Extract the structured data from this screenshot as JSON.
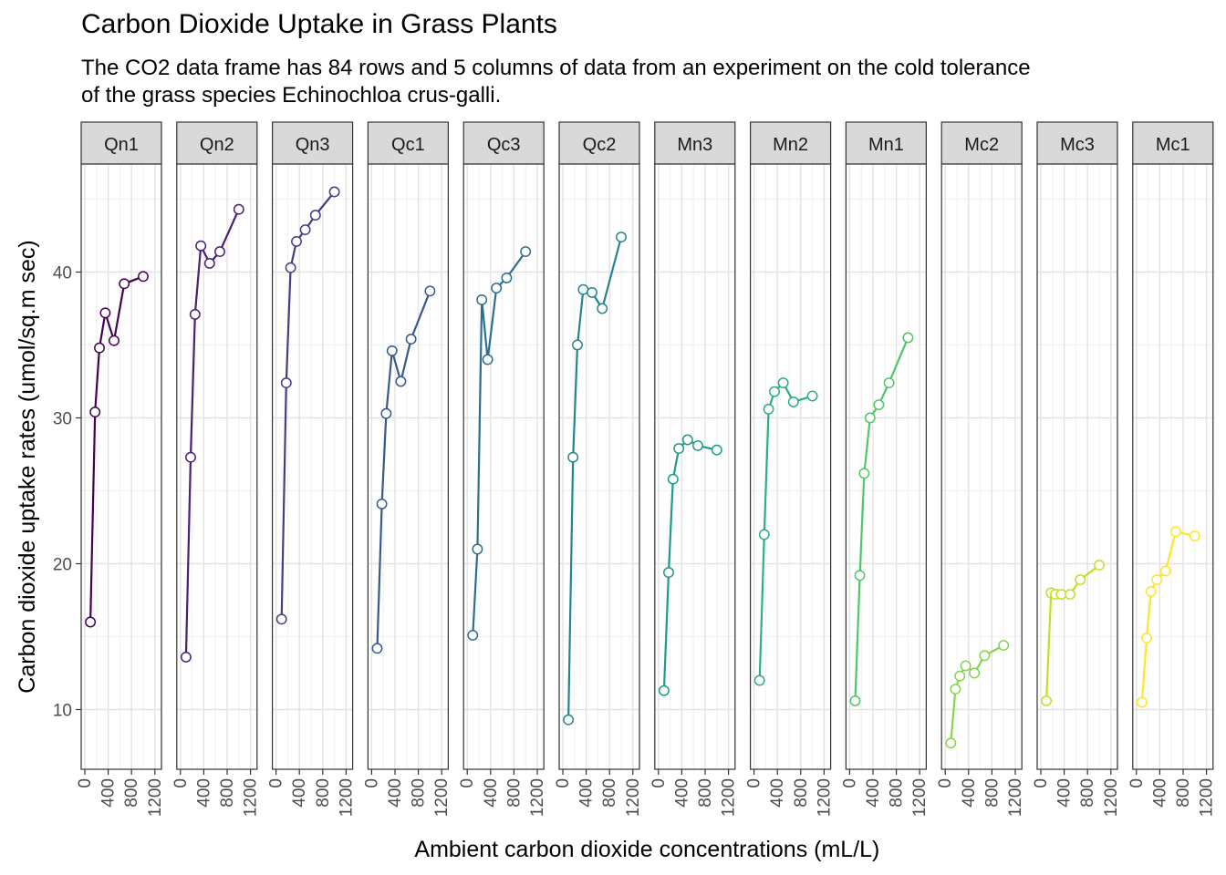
{
  "title": "Carbon Dioxide Uptake in Grass Plants",
  "subtitle_lines": [
    "The CO2 data frame has 84 rows and 5 columns of data from an experiment on the cold tolerance",
    "of the grass species Echinochloa crus-galli."
  ],
  "chart_data": {
    "type": "line",
    "facet_by": "Plant",
    "xlabel": "Ambient carbon dioxide concentrations (mL/L)",
    "ylabel": "Carbon dioxide uptake rates (umol/sq.m sec)",
    "xlim": [
      0,
      1250
    ],
    "ylim": [
      6,
      48
    ],
    "x_ticks": [
      0,
      400,
      800,
      1200
    ],
    "y_ticks": [
      10,
      20,
      30,
      40
    ],
    "grid": true,
    "legend": "none",
    "x": [
      95,
      175,
      250,
      350,
      500,
      675,
      1000
    ],
    "series": [
      {
        "name": "Qn1",
        "color": "#440154",
        "values": [
          16.0,
          30.4,
          34.8,
          37.2,
          35.3,
          39.2,
          39.7
        ]
      },
      {
        "name": "Qn2",
        "color": "#482173",
        "values": [
          13.6,
          27.3,
          37.1,
          41.8,
          40.6,
          41.4,
          44.3
        ]
      },
      {
        "name": "Qn3",
        "color": "#433E85",
        "values": [
          16.2,
          32.4,
          40.3,
          42.1,
          42.9,
          43.9,
          45.5
        ]
      },
      {
        "name": "Qc1",
        "color": "#38598C",
        "values": [
          14.2,
          24.1,
          30.3,
          34.6,
          32.5,
          35.4,
          38.7
        ]
      },
      {
        "name": "Qc3",
        "color": "#2D708E",
        "values": [
          15.1,
          21.0,
          38.1,
          34.0,
          38.9,
          39.6,
          41.4
        ]
      },
      {
        "name": "Qc2",
        "color": "#25858E",
        "values": [
          9.3,
          27.3,
          35.0,
          38.8,
          38.6,
          37.5,
          42.4
        ]
      },
      {
        "name": "Mn3",
        "color": "#1E9B8A",
        "values": [
          11.3,
          19.4,
          25.8,
          27.9,
          28.5,
          28.1,
          27.8
        ]
      },
      {
        "name": "Mn2",
        "color": "#2BB07F",
        "values": [
          12.0,
          22.0,
          30.6,
          31.8,
          32.4,
          31.1,
          31.5
        ]
      },
      {
        "name": "Mn1",
        "color": "#51C56A",
        "values": [
          10.6,
          19.2,
          26.2,
          30.0,
          30.9,
          32.4,
          35.5
        ]
      },
      {
        "name": "Mc2",
        "color": "#85D54A",
        "values": [
          7.7,
          11.4,
          12.3,
          13.0,
          12.5,
          13.7,
          14.4
        ]
      },
      {
        "name": "Mc3",
        "color": "#C2DF23",
        "values": [
          10.6,
          18.0,
          17.9,
          17.9,
          17.9,
          18.9,
          19.9
        ]
      },
      {
        "name": "Mc1",
        "color": "#FDE725",
        "values": [
          10.5,
          14.9,
          18.1,
          18.9,
          19.5,
          22.2,
          21.9
        ]
      }
    ]
  }
}
